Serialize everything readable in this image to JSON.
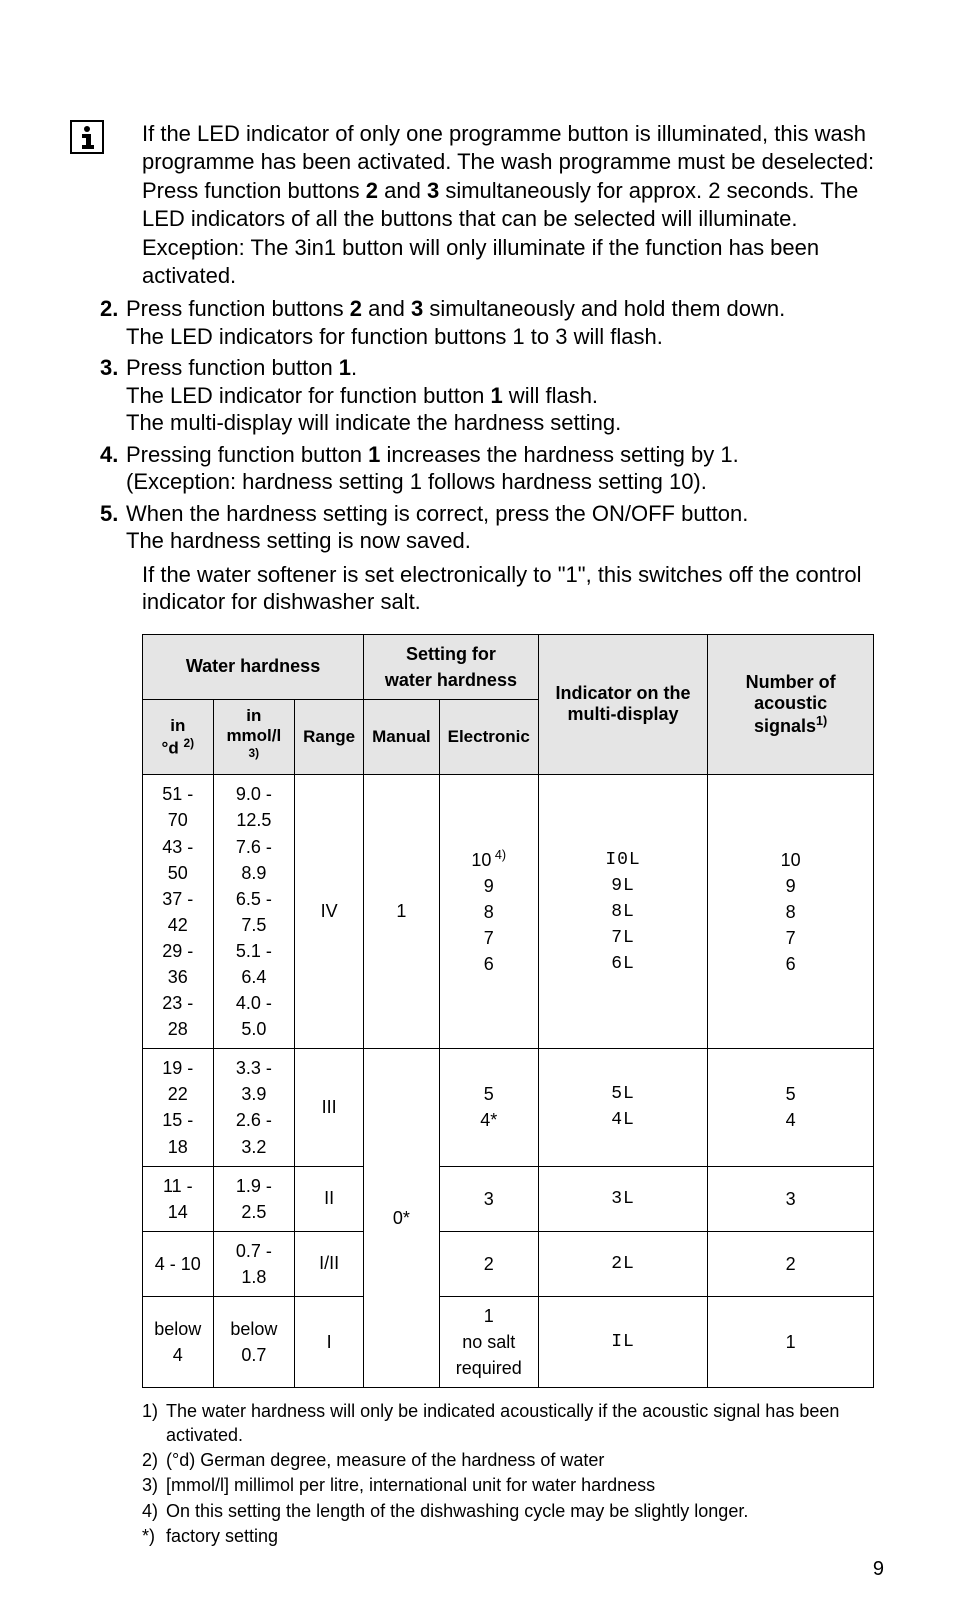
{
  "info": {
    "p1": "If the LED indicator of only one programme button is illuminated, this wash programme has been activated. The wash programme must be deselected:",
    "p2_pre": "Press function buttons ",
    "p2_b1": "2",
    "p2_mid": " and ",
    "p2_b2": "3",
    "p2_post": " simultaneously for approx. 2 seconds. The LED indicators of all the buttons that can be selected will illuminate.",
    "p3": "Exception: The 3in1 button will only illuminate if the function has been activated."
  },
  "steps": [
    {
      "num": "2.",
      "lines": [
        {
          "pre": "Press function buttons ",
          "b1": "2",
          "mid": " and ",
          "b2": "3",
          "post": " simultaneously and hold them down."
        },
        {
          "plain": "The LED indicators for function buttons 1 to 3 will flash."
        }
      ]
    },
    {
      "num": "3.",
      "lines": [
        {
          "pre": "Press function button ",
          "b1": "1",
          "post": "."
        },
        {
          "pre": "The LED indicator for function button  ",
          "b1": "1",
          "post": "  will flash."
        },
        {
          "plain": "The multi-display will indicate the hardness setting."
        }
      ]
    },
    {
      "num": "4.",
      "lines": [
        {
          "pre": "Pressing function button  ",
          "b1": "1",
          "post": "  increases the hardness setting by 1."
        },
        {
          "plain": "(Exception: hardness setting 1 follows hardness setting 10)."
        }
      ]
    },
    {
      "num": "5.",
      "lines": [
        {
          "plain": "When the hardness setting is correct, press the ON/OFF button."
        },
        {
          "plain": "The hardness setting is now saved."
        }
      ]
    }
  ],
  "after_steps": {
    "p1": "If the water softener is set electronically to \"1\", this switches off the control indicator for dishwasher salt."
  },
  "table": {
    "headers": {
      "water_hardness": "Water hardness",
      "setting_for": "Setting for\nwater hardness",
      "indicator": "Indicator on the multi-display",
      "number_of": "Number of acoustic signals",
      "number_of_sup": "1)",
      "in_d": "in",
      "in_d_sub": "°d",
      "in_d_sup": "2)",
      "in_mmol": "in",
      "in_mmol_sub": "mmol/l",
      "in_mmol_sup": "3)",
      "range": "Range",
      "manual": "Manual",
      "electronic": "Electronic"
    },
    "rows": [
      {
        "d": "51 - 70\n43 - 50\n37 - 42\n29 - 36\n23 - 28",
        "mmol": "9.0 - 12.5\n7.6 - 8.9\n6.5 - 7.5\n5.1 - 6.4\n4.0 - 5.0",
        "range": "IV",
        "manual": "1",
        "electronic_pre": "10",
        "electronic_sup": " 4)",
        "electronic_post": "\n9\n8\n7\n6",
        "indicator": "I0L\n9L\n8L\n7L\n6L",
        "signals": "10\n9\n8\n7\n6"
      },
      {
        "d": "19 - 22\n15 - 18",
        "mmol": "3.3 - 3.9\n2.6 - 3.2",
        "range": "III",
        "electronic": "5\n4*",
        "indicator": "5L\n4L",
        "signals": "5\n4"
      },
      {
        "d": "11 - 14",
        "mmol": "1.9 - 2.5",
        "range": "II",
        "electronic": "3",
        "indicator": "3L",
        "signals": "3"
      },
      {
        "d": "4 - 10",
        "mmol": "0.7 - 1.8",
        "range": "I/II",
        "electronic": "2",
        "indicator": "2L",
        "signals": "2"
      },
      {
        "d": "below 4",
        "mmol": "below 0.7",
        "range": "I",
        "electronic": "1\nno salt\nrequired",
        "indicator": "IL",
        "signals": "1"
      }
    ],
    "manual_zero": "0*"
  },
  "footnotes": [
    {
      "num": "1)",
      "text": "The water hardness will only be indicated acoustically if the acoustic signal has been activated."
    },
    {
      "num": "2)",
      "text": "(°d) German degree, measure of the hardness of water"
    },
    {
      "num": "3)",
      "text": "[mmol/l] millimol per litre, international unit for water hardness"
    },
    {
      "num": "4)",
      "text": "On this setting the length of the dishwashing cycle may be slightly longer."
    },
    {
      "num": "*)",
      "text": " factory setting"
    }
  ],
  "page_number": "9"
}
